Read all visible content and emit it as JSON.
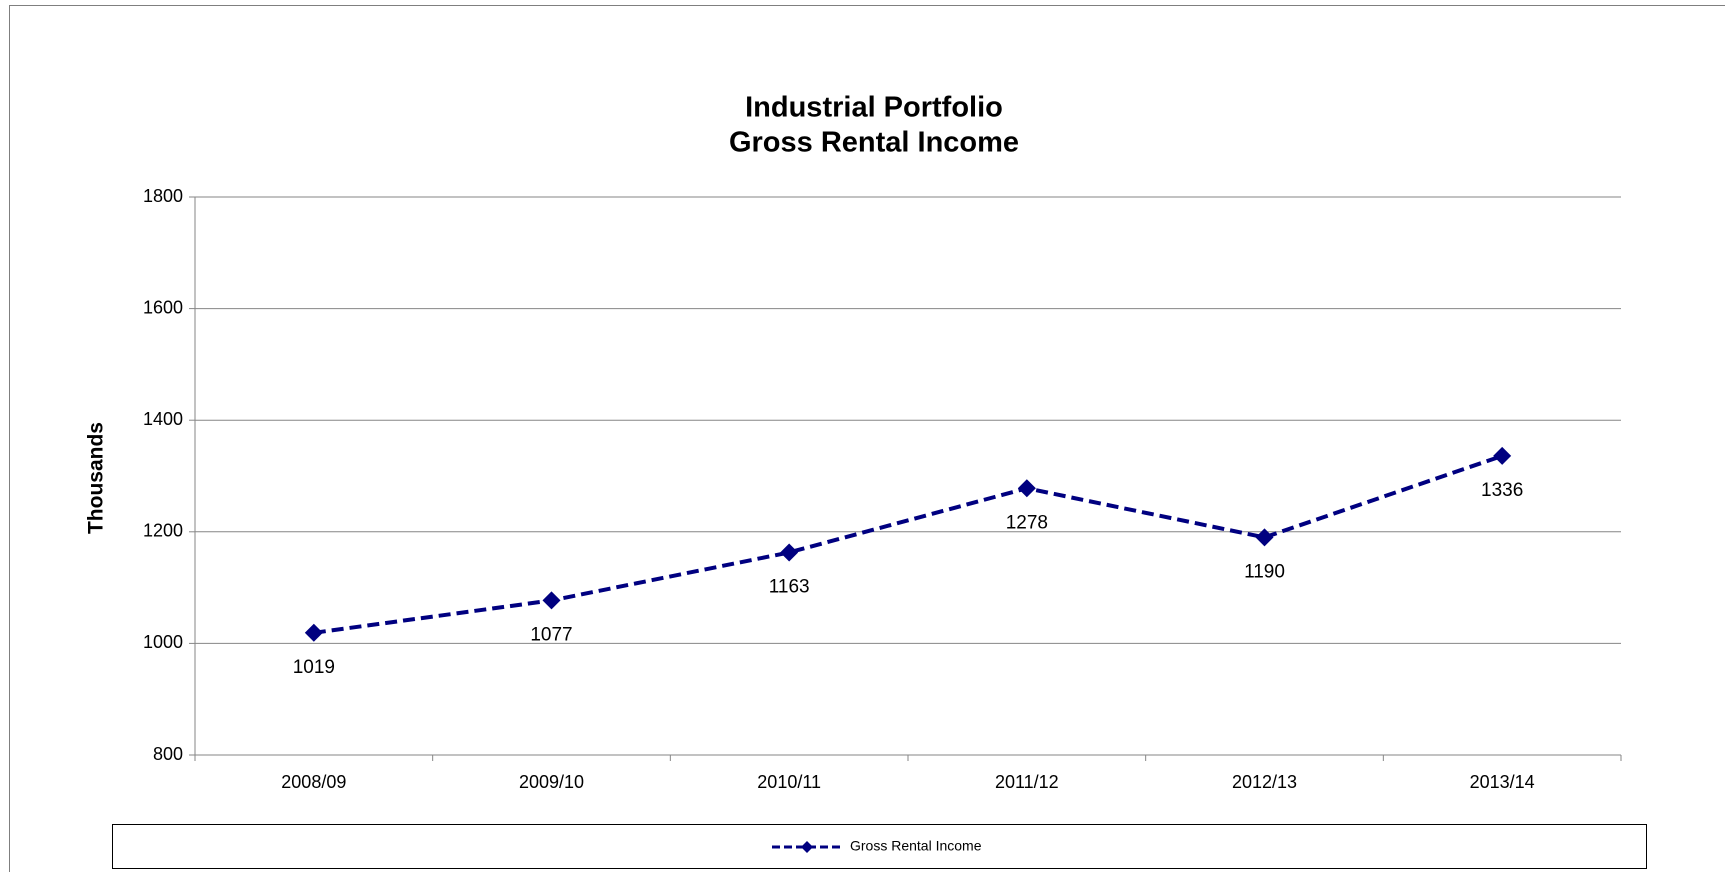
{
  "chart_data": {
    "type": "line",
    "title": "Industrial Portfolio",
    "subtitle": "Gross Rental Income",
    "y_label": "Thousands",
    "categories": [
      "2008/09",
      "2009/10",
      "2010/11",
      "2011/12",
      "2012/13",
      "2013/14"
    ],
    "series": [
      {
        "name": "Gross Rental Income",
        "color": "#000080",
        "values": [
          1019,
          1077,
          1163,
          1278,
          1190,
          1336
        ]
      }
    ],
    "ylim": [
      800,
      1800
    ],
    "yticks": [
      800,
      1000,
      1200,
      1400,
      1600,
      1800
    ],
    "grid": true,
    "legend": "bottom"
  }
}
